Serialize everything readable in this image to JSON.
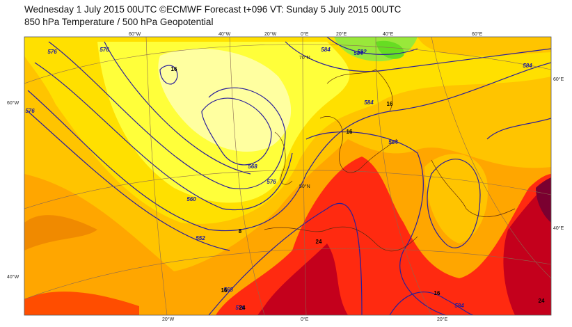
{
  "header": {
    "title": "Wednesday 1 July 2015 00UTC ©ECMWF Forecast t+096 VT: Sunday 5 July 2015 00UTC",
    "subtitle": "850 hPa Temperature / 500 hPa Geopotential"
  },
  "graticule_labels": [
    "60°W",
    "40°W",
    "20°W",
    "0°E",
    "20°E",
    "40°E",
    "60°E",
    "60°W",
    "40°W",
    "60°E",
    "40°E",
    "20°W",
    "0°E",
    "20°E",
    "70°N",
    "50°N"
  ],
  "height_labels": [
    "576",
    "576",
    "584",
    "592",
    "584",
    "576",
    "584",
    "584",
    "576",
    "568",
    "560",
    "552",
    "568",
    "576",
    "584",
    "584"
  ],
  "temperature_labels": [
    "8",
    "16",
    "16",
    "24",
    "24",
    "16",
    "16",
    "24",
    "16"
  ]
}
